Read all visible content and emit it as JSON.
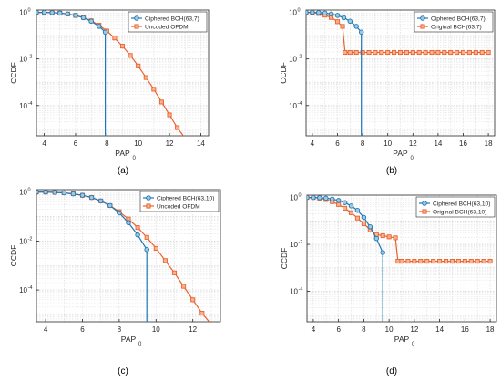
{
  "chart_data": [
    {
      "type": "line",
      "panel_label": "(a)",
      "xlabel": "PAP",
      "xlabel_sub": "0",
      "ylabel": "CCDF",
      "xlim": [
        3.5,
        14.5
      ],
      "ylim_log10": [
        -5.3,
        0.1
      ],
      "log_y": true,
      "grid": true,
      "legend": "top-right",
      "xticks": [
        4,
        6,
        8,
        10,
        12,
        14
      ],
      "xtick_labels": [
        "4",
        "6",
        "8",
        "10",
        "12",
        "14"
      ],
      "yticks_log10": [
        0,
        -2,
        -4
      ],
      "ytick_labels": [
        "10",
        "10",
        "10"
      ],
      "ytick_exponents": [
        "0",
        "-2",
        "-4"
      ],
      "series": [
        {
          "name": "Ciphered BCH(63,7)",
          "color": "#1f77b4",
          "marker": "circle",
          "x": [
            3.5,
            4,
            4.5,
            5,
            5.5,
            6,
            6.5,
            7,
            7.5,
            7.9,
            7.9
          ],
          "log10_y": [
            0,
            0,
            -0.01,
            -0.03,
            -0.07,
            -0.13,
            -0.23,
            -0.38,
            -0.6,
            -0.85,
            -5.3
          ]
        },
        {
          "name": "Uncoded OFDM",
          "color": "#e8622c",
          "marker": "square",
          "x": [
            3.5,
            4,
            4.5,
            5,
            5.5,
            6,
            6.5,
            7,
            7.5,
            8,
            8.5,
            9,
            9.5,
            10,
            10.5,
            11,
            11.5,
            12,
            12.5,
            13
          ],
          "log10_y": [
            0,
            0,
            -0.01,
            -0.03,
            -0.07,
            -0.13,
            -0.22,
            -0.36,
            -0.55,
            -0.8,
            -1.1,
            -1.45,
            -1.85,
            -2.3,
            -2.8,
            -3.3,
            -3.85,
            -4.4,
            -4.95,
            -5.4
          ]
        }
      ]
    },
    {
      "type": "line",
      "panel_label": "(b)",
      "xlabel": "PAP",
      "xlabel_sub": "0",
      "ylabel": "CCDF",
      "xlim": [
        3.5,
        18.5
      ],
      "ylim_log10": [
        -5.3,
        0.1
      ],
      "log_y": true,
      "grid": true,
      "legend": "top-right",
      "xticks": [
        4,
        6,
        8,
        10,
        12,
        14,
        16,
        18
      ],
      "xtick_labels": [
        "4",
        "6",
        "8",
        "10",
        "12",
        "14",
        "16",
        "18"
      ],
      "yticks_log10": [
        0,
        -2,
        -4
      ],
      "ytick_labels": [
        "10",
        "10",
        "10"
      ],
      "ytick_exponents": [
        "0",
        "-2",
        "-4"
      ],
      "series": [
        {
          "name": "Ciphered BCH(63,7)",
          "color": "#1f77b4",
          "marker": "circle",
          "x": [
            3.5,
            4,
            4.5,
            5,
            5.5,
            6,
            6.5,
            7,
            7.5,
            7.9,
            7.9
          ],
          "log10_y": [
            0,
            0,
            -0.01,
            -0.03,
            -0.07,
            -0.13,
            -0.23,
            -0.38,
            -0.6,
            -0.85,
            -5.3
          ]
        },
        {
          "name": "Original BCH(63,7)",
          "color": "#e8622c",
          "marker": "square",
          "x": [
            3.5,
            4,
            4.5,
            5,
            5.5,
            6,
            6.4,
            6.6,
            7,
            7.5,
            8,
            8.5,
            9,
            9.5,
            10,
            10.5,
            11,
            11.5,
            12,
            12.5,
            13,
            13.5,
            14,
            14.5,
            15,
            15.5,
            16,
            16.5,
            17,
            17.5,
            18
          ],
          "log10_y": [
            0,
            0,
            -0.05,
            -0.12,
            -0.22,
            -0.4,
            -0.6,
            -1.72,
            -1.72,
            -1.72,
            -1.72,
            -1.72,
            -1.72,
            -1.72,
            -1.72,
            -1.72,
            -1.72,
            -1.72,
            -1.72,
            -1.72,
            -1.72,
            -1.72,
            -1.72,
            -1.72,
            -1.72,
            -1.72,
            -1.72,
            -1.72,
            -1.72,
            -1.72,
            -1.72
          ]
        }
      ]
    },
    {
      "type": "line",
      "panel_label": "(c)",
      "xlabel": "PAP",
      "xlabel_sub": "0",
      "ylabel": "CCDF",
      "xlim": [
        3.5,
        13.5
      ],
      "ylim_log10": [
        -5.3,
        0.1
      ],
      "log_y": true,
      "grid": true,
      "legend": "top-right",
      "xticks": [
        4,
        6,
        8,
        10,
        12
      ],
      "xtick_labels": [
        "4",
        "6",
        "8",
        "10",
        "12"
      ],
      "yticks_log10": [
        0,
        -2,
        -4
      ],
      "ytick_labels": [
        "10",
        "10",
        "10"
      ],
      "ytick_exponents": [
        "0",
        "-2",
        "-4"
      ],
      "series": [
        {
          "name": "Ciphered BCH(63,10)",
          "color": "#1f77b4",
          "marker": "circle",
          "x": [
            3.5,
            4,
            4.5,
            5,
            5.5,
            6,
            6.5,
            7,
            7.5,
            8,
            8.5,
            9,
            9.5,
            9.5
          ],
          "log10_y": [
            0,
            0,
            -0.01,
            -0.03,
            -0.07,
            -0.13,
            -0.22,
            -0.36,
            -0.55,
            -0.85,
            -1.25,
            -1.75,
            -2.35,
            -5.3
          ]
        },
        {
          "name": "Uncoded OFDM",
          "color": "#e8622c",
          "marker": "square",
          "x": [
            3.5,
            4,
            4.5,
            5,
            5.5,
            6,
            6.5,
            7,
            7.5,
            8,
            8.5,
            9,
            9.5,
            10,
            10.5,
            11,
            11.5,
            12,
            12.5,
            13
          ],
          "log10_y": [
            0,
            0,
            -0.01,
            -0.03,
            -0.07,
            -0.13,
            -0.22,
            -0.36,
            -0.55,
            -0.8,
            -1.1,
            -1.45,
            -1.85,
            -2.3,
            -2.8,
            -3.3,
            -3.85,
            -4.4,
            -4.95,
            -5.4
          ]
        }
      ]
    },
    {
      "type": "line",
      "panel_label": "(d)",
      "xlabel": "PAP",
      "xlabel_sub": "0",
      "ylabel": "CCDF",
      "xlim": [
        3.5,
        18.5
      ],
      "ylim_log10": [
        -5.3,
        0.1
      ],
      "log_y": true,
      "grid": true,
      "legend": "top-right",
      "xticks": [
        4,
        6,
        8,
        10,
        12,
        14,
        16,
        18
      ],
      "xtick_labels": [
        "4",
        "6",
        "8",
        "10",
        "12",
        "14",
        "16",
        "18"
      ],
      "yticks_log10": [
        0,
        -2,
        -4
      ],
      "ytick_labels": [
        "10",
        "10",
        "10"
      ],
      "ytick_exponents": [
        "0",
        "-2",
        "-4"
      ],
      "series": [
        {
          "name": "Ciphered BCH(63,10)",
          "color": "#1f77b4",
          "marker": "circle",
          "x": [
            3.5,
            4,
            4.5,
            5,
            5.5,
            6,
            6.5,
            7,
            7.5,
            8,
            8.5,
            9,
            9.5,
            9.5
          ],
          "log10_y": [
            0,
            0,
            -0.01,
            -0.03,
            -0.07,
            -0.13,
            -0.22,
            -0.36,
            -0.55,
            -0.85,
            -1.25,
            -1.75,
            -2.35,
            -5.3
          ]
        },
        {
          "name": "Original BCH(63,10)",
          "color": "#e8622c",
          "marker": "square",
          "x": [
            3.5,
            4,
            4.5,
            5,
            5.5,
            6,
            6.5,
            7,
            7.5,
            8,
            8.5,
            9,
            9.5,
            10,
            10.5,
            10.7,
            11,
            11.5,
            12,
            12.5,
            13,
            13.5,
            14,
            14.5,
            15,
            15.5,
            16,
            16.5,
            17,
            17.5,
            18
          ],
          "log10_y": [
            0,
            0,
            -0.03,
            -0.09,
            -0.18,
            -0.3,
            -0.46,
            -0.65,
            -0.88,
            -1.12,
            -1.38,
            -1.58,
            -1.63,
            -1.68,
            -1.72,
            -2.72,
            -2.72,
            -2.72,
            -2.72,
            -2.72,
            -2.72,
            -2.72,
            -2.72,
            -2.72,
            -2.72,
            -2.72,
            -2.72,
            -2.72,
            -2.72,
            -2.72,
            -2.72
          ]
        }
      ]
    }
  ]
}
